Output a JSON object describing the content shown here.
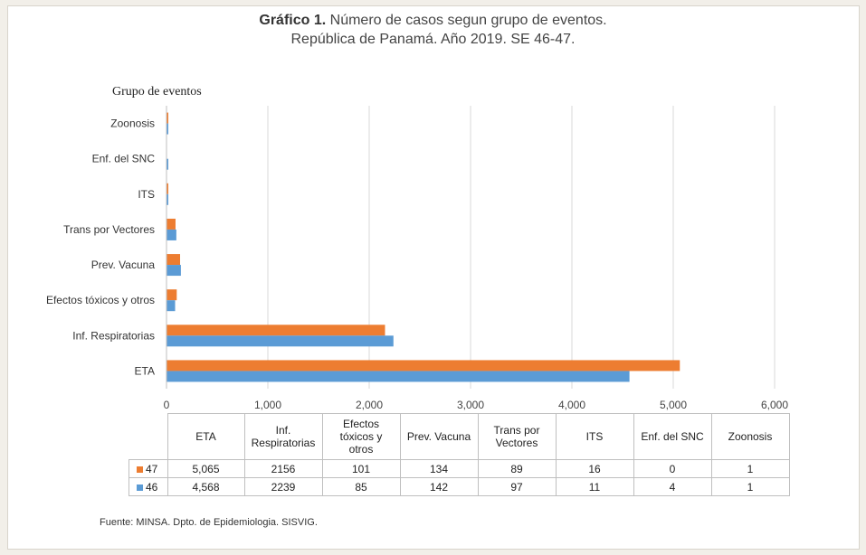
{
  "title": {
    "bold": "Gráfico 1.",
    "rest": " Número de casos segun grupo de eventos.",
    "line2": "República de Panamá. Año 2019. SE 46-47."
  },
  "source": "Fuente: MINSA. Dpto. de Epidemiologia. SISVIG.",
  "colors": {
    "series_47": "#ed7d31",
    "series_46": "#5b9bd5",
    "grid": "#d9d9d9"
  },
  "chart_data": {
    "type": "bar",
    "orientation": "horizontal",
    "ylabel": "Grupo de eventos",
    "categories": [
      "ETA",
      "Inf.  Respiratorias",
      "Efectos tóxicos y otros",
      "Prev. Vacuna",
      "Trans por Vectores",
      "ITS",
      "Enf. del SNC",
      "Zoonosis"
    ],
    "series": [
      {
        "name": "47",
        "values": [
          5065,
          2156,
          101,
          134,
          89,
          16,
          0,
          1
        ],
        "color": "#ed7d31"
      },
      {
        "name": "46",
        "values": [
          4568,
          2239,
          85,
          142,
          97,
          11,
          4,
          1
        ],
        "color": "#5b9bd5"
      }
    ],
    "xlim": [
      0,
      6000
    ],
    "xticks": [
      0,
      1000,
      2000,
      3000,
      4000,
      5000,
      6000
    ],
    "xtick_labels": [
      "0",
      "1,000",
      "2,000",
      "3,000",
      "4,000",
      "5,000",
      "6,000"
    ],
    "grid": true,
    "legend": "data table below chart"
  },
  "table": {
    "headers": [
      "ETA",
      "Inf.\nRespiratorias",
      "Efectos\ntóxicos y\notros",
      "Prev. Vacuna",
      "Trans por\nVectores",
      "ITS",
      "Enf. del SNC",
      "Zoonosis"
    ],
    "rows": [
      {
        "label": "47",
        "cells": [
          "5,065",
          "2156",
          "101",
          "134",
          "89",
          "16",
          "0",
          "1"
        ]
      },
      {
        "label": "46",
        "cells": [
          "4,568",
          "2239",
          "85",
          "142",
          "97",
          "11",
          "4",
          "1"
        ]
      }
    ]
  }
}
